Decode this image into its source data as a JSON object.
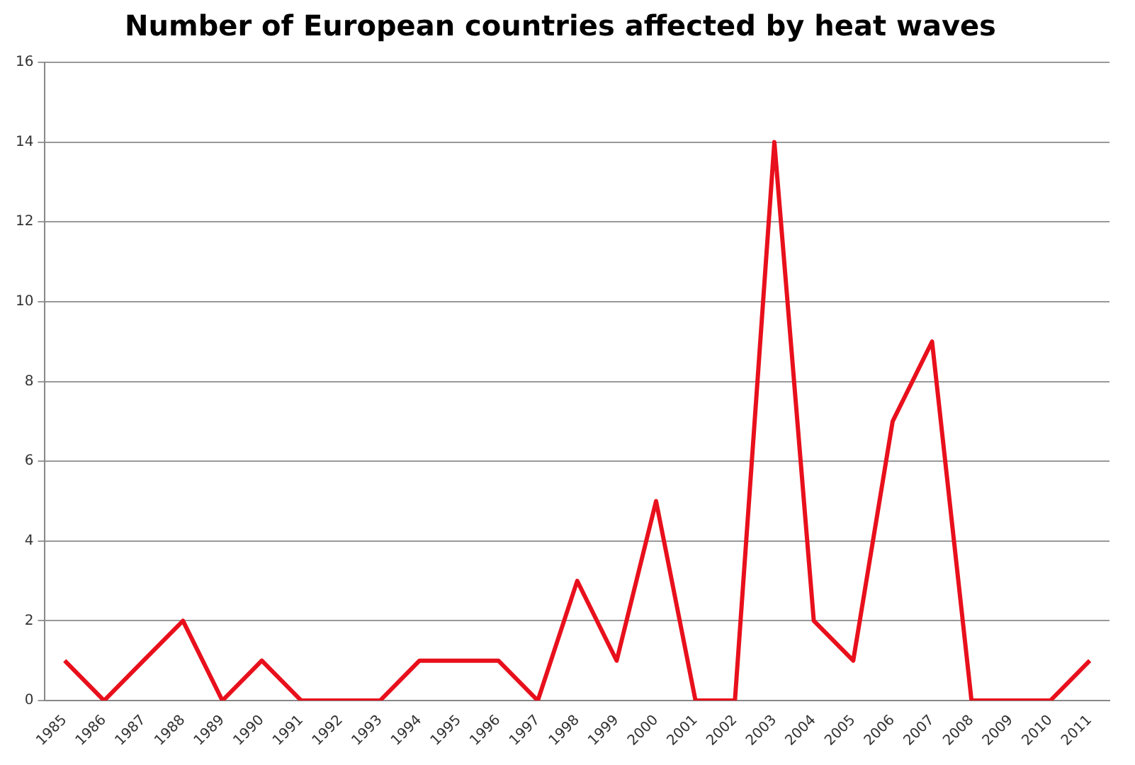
{
  "chart_data": {
    "type": "line",
    "title": "Number of European countries affected by heat waves",
    "categories": [
      "1985",
      "1986",
      "1987",
      "1988",
      "1989",
      "1990",
      "1991",
      "1992",
      "1993",
      "1994",
      "1995",
      "1996",
      "1997",
      "1998",
      "1999",
      "2000",
      "2001",
      "2002",
      "2003",
      "2004",
      "2005",
      "2006",
      "2007",
      "2008",
      "2009",
      "2010",
      "2011"
    ],
    "series": [
      {
        "color": "#e8101c",
        "values": [
          1,
          0,
          1,
          2,
          0,
          1,
          0,
          0,
          0,
          1,
          1,
          1,
          0,
          3,
          1,
          5,
          0,
          0,
          14,
          2,
          1,
          7,
          9,
          0,
          0,
          0,
          1
        ]
      }
    ],
    "ylim": [
      0,
      16
    ],
    "yticks": [
      0,
      2,
      4,
      6,
      8,
      10,
      12,
      14,
      16
    ],
    "grid": "y",
    "legend": false,
    "marker": "none",
    "line_style": "solid"
  }
}
